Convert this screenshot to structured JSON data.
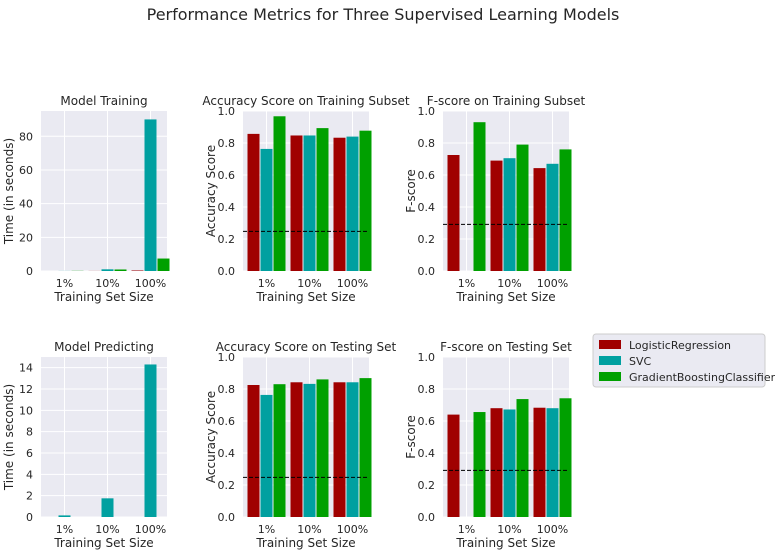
{
  "figure": {
    "title": "Performance Metrics for Three Supervised Learning Models",
    "colors": {
      "plot_bg": "#EAEAF2",
      "grid": "#FFFFFF",
      "text": "#262626"
    }
  },
  "legend": {
    "placement": "right of bottom-right panel",
    "entries": [
      {
        "name": "LogisticRegression",
        "color": "#A00000"
      },
      {
        "name": "SVC",
        "color": "#00A0A0"
      },
      {
        "name": "GradientBoostingClassifier",
        "color": "#00A000"
      }
    ]
  },
  "chart_data": [
    {
      "type": "bar",
      "title": "Model Training",
      "xlabel": "Training Set Size",
      "ylabel": "Time (in seconds)",
      "categories": [
        "1%",
        "10%",
        "100%"
      ],
      "ylim": [
        0,
        95
      ],
      "yticks": [
        0,
        20,
        40,
        60,
        80
      ],
      "grid": true,
      "series": [
        {
          "name": "LogisticRegression",
          "color": "#A00000",
          "values": [
            0.0,
            0.05,
            0.3
          ]
        },
        {
          "name": "SVC",
          "color": "#00A0A0",
          "values": [
            0.05,
            1.0,
            90.0
          ]
        },
        {
          "name": "GradientBoostingClassifier",
          "color": "#00A000",
          "values": [
            0.1,
            0.9,
            7.4
          ]
        }
      ]
    },
    {
      "type": "bar",
      "title": "Accuracy Score on Training Subset",
      "xlabel": "Training Set Size",
      "ylabel": "Accuracy Score",
      "categories": [
        "1%",
        "10%",
        "100%"
      ],
      "ylim": [
        0,
        1
      ],
      "yticks": [
        0.0,
        0.2,
        0.4,
        0.6,
        0.8,
        1.0
      ],
      "grid": true,
      "hline": 0.2478,
      "series": [
        {
          "name": "LogisticRegression",
          "color": "#A00000",
          "values": [
            0.857,
            0.847,
            0.833
          ]
        },
        {
          "name": "SVC",
          "color": "#00A0A0",
          "values": [
            0.763,
            0.847,
            0.84
          ]
        },
        {
          "name": "GradientBoostingClassifier",
          "color": "#00A000",
          "values": [
            0.967,
            0.893,
            0.877
          ]
        }
      ]
    },
    {
      "type": "bar",
      "title": "F-score on Training Subset",
      "xlabel": "Training Set Size",
      "ylabel": "F-score",
      "categories": [
        "1%",
        "10%",
        "100%"
      ],
      "ylim": [
        0,
        1
      ],
      "yticks": [
        0.0,
        0.2,
        0.4,
        0.6,
        0.8,
        1.0
      ],
      "grid": true,
      "hline": 0.2917,
      "series": [
        {
          "name": "LogisticRegression",
          "color": "#A00000",
          "values": [
            0.725,
            0.69,
            0.643
          ]
        },
        {
          "name": "SVC",
          "color": "#00A0A0",
          "values": [
            0.0,
            0.705,
            0.67
          ]
        },
        {
          "name": "GradientBoostingClassifier",
          "color": "#00A000",
          "values": [
            0.93,
            0.79,
            0.76
          ]
        }
      ]
    },
    {
      "type": "bar",
      "title": "Model Predicting",
      "xlabel": "Training Set Size",
      "ylabel": "Time (in seconds)",
      "categories": [
        "1%",
        "10%",
        "100%"
      ],
      "ylim": [
        0,
        15
      ],
      "yticks": [
        0,
        2,
        4,
        6,
        8,
        10,
        12,
        14
      ],
      "grid": true,
      "series": [
        {
          "name": "LogisticRegression",
          "color": "#A00000",
          "values": [
            0.0,
            0.0,
            0.0
          ]
        },
        {
          "name": "SVC",
          "color": "#00A0A0",
          "values": [
            0.15,
            1.75,
            14.3
          ]
        },
        {
          "name": "GradientBoostingClassifier",
          "color": "#00A000",
          "values": [
            0.0,
            0.0,
            0.0
          ]
        }
      ]
    },
    {
      "type": "bar",
      "title": "Accuracy Score on Testing Set",
      "xlabel": "Training Set Size",
      "ylabel": "Accuracy Score",
      "categories": [
        "1%",
        "10%",
        "100%"
      ],
      "ylim": [
        0,
        1
      ],
      "yticks": [
        0.0,
        0.2,
        0.4,
        0.6,
        0.8,
        1.0
      ],
      "grid": true,
      "hline": 0.2478,
      "series": [
        {
          "name": "LogisticRegression",
          "color": "#A00000",
          "values": [
            0.825,
            0.842,
            0.842
          ]
        },
        {
          "name": "SVC",
          "color": "#00A0A0",
          "values": [
            0.763,
            0.832,
            0.842
          ]
        },
        {
          "name": "GradientBoostingClassifier",
          "color": "#00A000",
          "values": [
            0.83,
            0.86,
            0.868
          ]
        }
      ]
    },
    {
      "type": "bar",
      "title": "F-score on Testing Set",
      "xlabel": "Training Set Size",
      "ylabel": "F-score",
      "categories": [
        "1%",
        "10%",
        "100%"
      ],
      "ylim": [
        0,
        1
      ],
      "yticks": [
        0.0,
        0.2,
        0.4,
        0.6,
        0.8,
        1.0
      ],
      "grid": true,
      "hline": 0.2917,
      "series": [
        {
          "name": "LogisticRegression",
          "color": "#A00000",
          "values": [
            0.64,
            0.68,
            0.683
          ]
        },
        {
          "name": "SVC",
          "color": "#00A0A0",
          "values": [
            0.0,
            0.672,
            0.68
          ]
        },
        {
          "name": "GradientBoostingClassifier",
          "color": "#00A000",
          "values": [
            0.656,
            0.737,
            0.742
          ]
        }
      ]
    }
  ]
}
